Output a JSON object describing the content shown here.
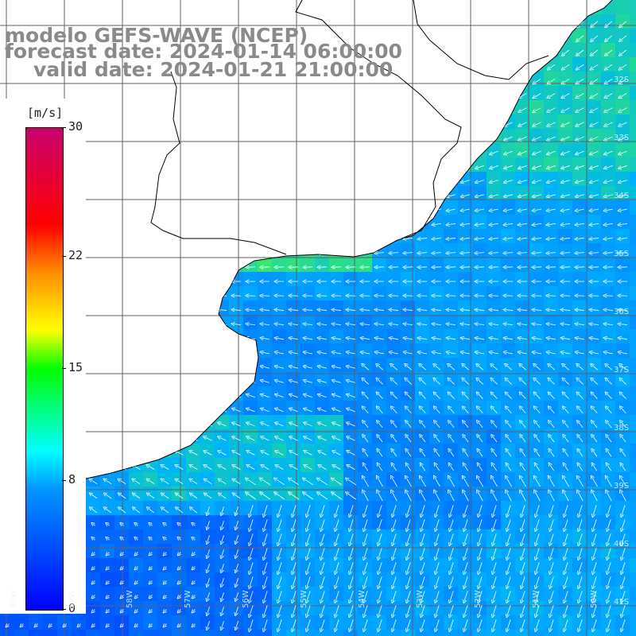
{
  "title": {
    "line1": "modelo GEFS-WAVE (NCEP)",
    "line2": "forecast date: 2024-01-14 06:00:00",
    "line3": "valid date: 2024-01-21 21:00:00"
  },
  "legend": {
    "units": "[m/s]",
    "ticks": [
      {
        "value": 30,
        "label": "30"
      },
      {
        "value": 22,
        "label": "22"
      },
      {
        "value": 15,
        "label": "15"
      },
      {
        "value": 8,
        "label": "8"
      },
      {
        "value": 0,
        "label": "0"
      }
    ],
    "range": [
      0,
      30
    ]
  },
  "axes": {
    "lat_labels": [
      "32S",
      "33S",
      "34S",
      "35S",
      "36S",
      "37S",
      "38S",
      "39S",
      "40S",
      "41S"
    ],
    "lon_labels": [
      "60W",
      "59W",
      "58W",
      "57W",
      "56W",
      "55W",
      "54W",
      "53W",
      "52W",
      "51W",
      "50W"
    ]
  },
  "colors": {
    "ocean_low": "#0064ff",
    "ocean_mid": "#00c8ff",
    "ocean_high": "#00ff80",
    "land": "#ffffff",
    "grid": "#606060",
    "coastline": "#000000",
    "arrows": "#ffffff"
  }
}
